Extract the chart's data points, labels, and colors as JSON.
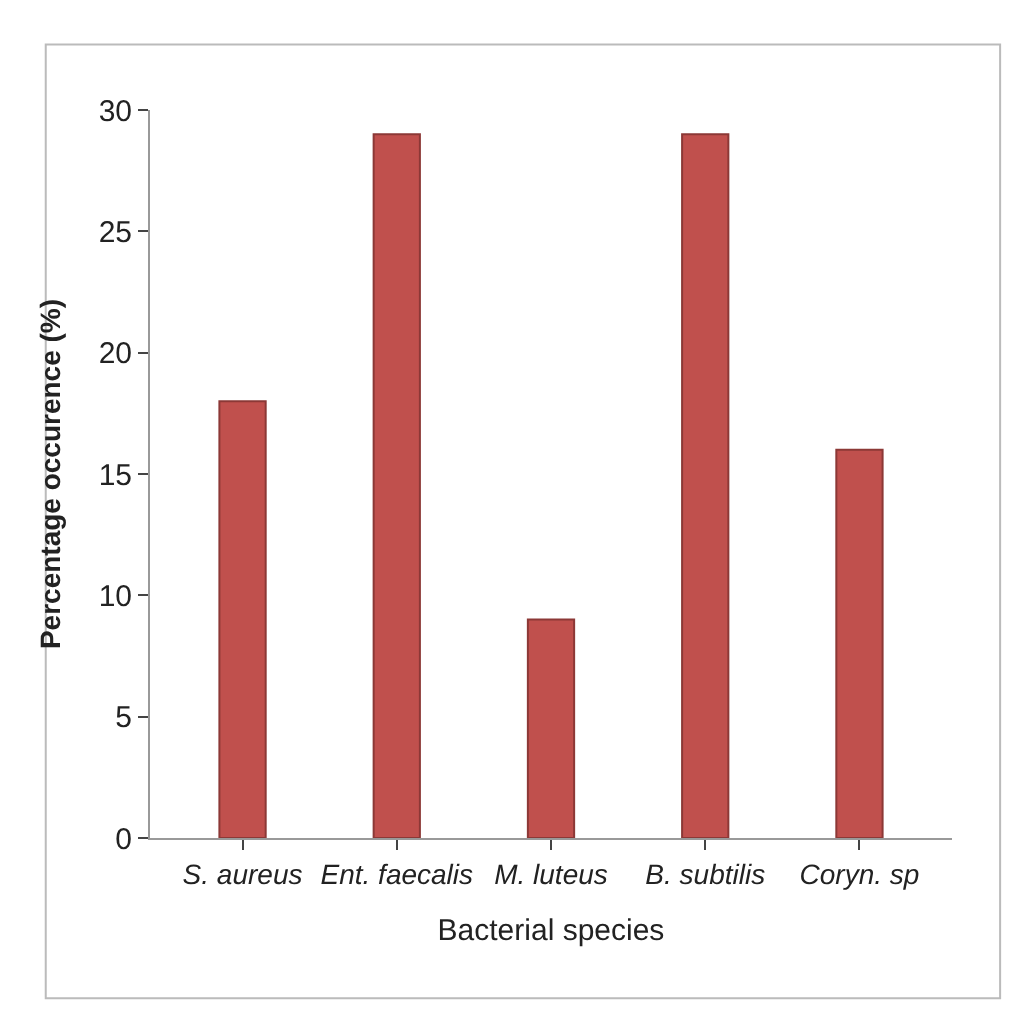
{
  "chart_data": {
    "type": "bar",
    "xlabel": "Bacterial species",
    "ylabel": "Percentage occurence (%)",
    "categories": [
      "S. aureus",
      "Ent. faecalis",
      "M. luteus",
      "B. subtilis",
      "Coryn. sp"
    ],
    "values": [
      18,
      29,
      9,
      29,
      16
    ],
    "color": "#c0504d",
    "ylim": [
      0,
      30
    ],
    "yticks": [
      0,
      5,
      10,
      15,
      20,
      25,
      30
    ]
  }
}
